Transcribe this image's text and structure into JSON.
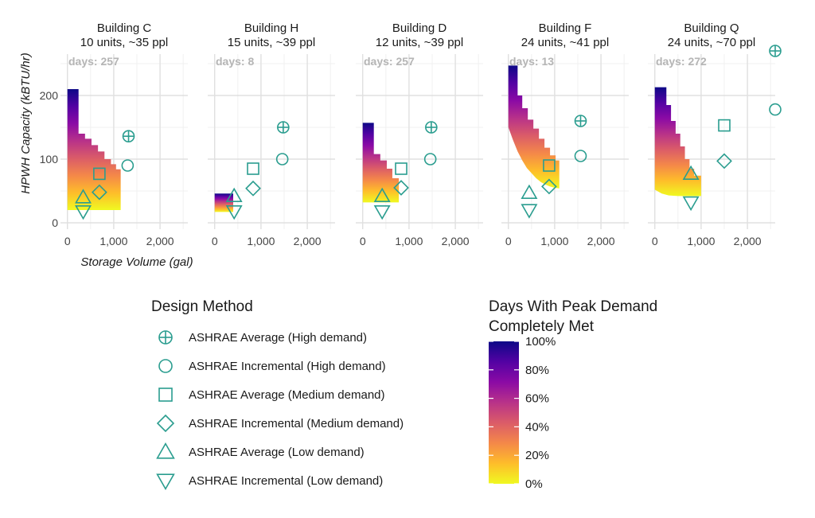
{
  "chart_data": {
    "type": "heatmap",
    "xlabel": "Storage Volume (gal)",
    "ylabel": "HPWH Capacity (kBTU/hr)",
    "xlim": [
      -150,
      2600
    ],
    "ylim": [
      -10,
      265
    ],
    "x_ticks": [
      0,
      1000,
      2000
    ],
    "x_tick_labels": [
      "0",
      "1,000",
      "2,000"
    ],
    "y_ticks": [
      0,
      100,
      200
    ],
    "y_tick_labels": [
      "0",
      "100",
      "200"
    ],
    "grid": true,
    "facets": [
      {
        "title_line1": "Building C",
        "title_line2": "10 units, ~35 ppl",
        "days_label": "days: 257",
        "region": {
          "x_min": 0,
          "x_max": 1150,
          "y_top": [
            [
              0,
              210
            ],
            [
              240,
              210
            ],
            [
              240,
              140
            ],
            [
              380,
              140
            ],
            [
              380,
              132
            ],
            [
              520,
              132
            ],
            [
              520,
              122
            ],
            [
              660,
              122
            ],
            [
              660,
              112
            ],
            [
              800,
              112
            ],
            [
              800,
              100
            ],
            [
              940,
              100
            ],
            [
              940,
              92
            ],
            [
              1050,
              92
            ],
            [
              1050,
              84
            ],
            [
              1150,
              84
            ]
          ],
          "y_bottom": [
            [
              0,
              20
            ],
            [
              1150,
              20
            ]
          ]
        },
        "points": [
          {
            "method": "ASHRAE Average (High demand)",
            "x": 1320,
            "y": 136
          },
          {
            "method": "ASHRAE Incremental (High demand)",
            "x": 1300,
            "y": 90
          },
          {
            "method": "ASHRAE Average (Medium demand)",
            "x": 690,
            "y": 77
          },
          {
            "method": "ASHRAE Incremental (Medium demand)",
            "x": 690,
            "y": 48
          },
          {
            "method": "ASHRAE Average (Low demand)",
            "x": 340,
            "y": 40
          },
          {
            "method": "ASHRAE Incremental (Low demand)",
            "x": 340,
            "y": 18
          }
        ]
      },
      {
        "title_line1": "Building H",
        "title_line2": "15 units, ~39 ppl",
        "days_label": "days: 8",
        "region": {
          "x_min": 0,
          "x_max": 400,
          "y_top": [
            [
              0,
              46
            ],
            [
              400,
              46
            ]
          ],
          "y_bottom": [
            [
              0,
              17
            ],
            [
              400,
              17
            ]
          ]
        },
        "points": [
          {
            "method": "ASHRAE Average (High demand)",
            "x": 1480,
            "y": 150
          },
          {
            "method": "ASHRAE Incremental (High demand)",
            "x": 1460,
            "y": 100
          },
          {
            "method": "ASHRAE Average (Medium demand)",
            "x": 830,
            "y": 85
          },
          {
            "method": "ASHRAE Incremental (Medium demand)",
            "x": 830,
            "y": 54
          },
          {
            "method": "ASHRAE Average (Low demand)",
            "x": 420,
            "y": 42
          },
          {
            "method": "ASHRAE Incremental (Low demand)",
            "x": 420,
            "y": 18
          }
        ]
      },
      {
        "title_line1": "Building D",
        "title_line2": "12 units, ~39 ppl",
        "days_label": "days: 257",
        "region": {
          "x_min": 0,
          "x_max": 780,
          "y_top": [
            [
              0,
              157
            ],
            [
              240,
              157
            ],
            [
              240,
              108
            ],
            [
              380,
              108
            ],
            [
              380,
              98
            ],
            [
              520,
              98
            ],
            [
              520,
              85
            ],
            [
              640,
              85
            ],
            [
              640,
              70
            ],
            [
              780,
              70
            ]
          ],
          "y_bottom": [
            [
              0,
              32
            ],
            [
              780,
              32
            ]
          ]
        },
        "points": [
          {
            "method": "ASHRAE Average (High demand)",
            "x": 1480,
            "y": 150
          },
          {
            "method": "ASHRAE Incremental (High demand)",
            "x": 1460,
            "y": 100
          },
          {
            "method": "ASHRAE Average (Medium demand)",
            "x": 830,
            "y": 85
          },
          {
            "method": "ASHRAE Incremental (Medium demand)",
            "x": 830,
            "y": 55
          },
          {
            "method": "ASHRAE Average (Low demand)",
            "x": 420,
            "y": 42
          },
          {
            "method": "ASHRAE Incremental (Low demand)",
            "x": 420,
            "y": 18
          }
        ]
      },
      {
        "title_line1": "Building F",
        "title_line2": "24 units, ~41 ppl",
        "days_label": "days: 13",
        "region": {
          "x_min": 0,
          "x_max": 1100,
          "y_top": [
            [
              0,
              247
            ],
            [
              200,
              247
            ],
            [
              200,
              200
            ],
            [
              300,
              200
            ],
            [
              300,
              180
            ],
            [
              420,
              180
            ],
            [
              420,
              162
            ],
            [
              540,
              162
            ],
            [
              540,
              148
            ],
            [
              660,
              148
            ],
            [
              660,
              132
            ],
            [
              780,
              132
            ],
            [
              780,
              118
            ],
            [
              900,
              118
            ],
            [
              900,
              106
            ],
            [
              1020,
              106
            ],
            [
              1020,
              98
            ],
            [
              1100,
              98
            ]
          ],
          "y_bottom": [
            [
              0,
              150
            ],
            [
              100,
              130
            ],
            [
              200,
              112
            ],
            [
              300,
              98
            ],
            [
              400,
              86
            ],
            [
              500,
              78
            ],
            [
              600,
              70
            ],
            [
              700,
              64
            ],
            [
              800,
              60
            ],
            [
              900,
              57
            ],
            [
              1000,
              55
            ],
            [
              1100,
              54
            ]
          ]
        },
        "points": [
          {
            "method": "ASHRAE Average (High demand)",
            "x": 1560,
            "y": 160
          },
          {
            "method": "ASHRAE Incremental (High demand)",
            "x": 1560,
            "y": 105
          },
          {
            "method": "ASHRAE Average (Medium demand)",
            "x": 880,
            "y": 90
          },
          {
            "method": "ASHRAE Incremental (Medium demand)",
            "x": 880,
            "y": 57
          },
          {
            "method": "ASHRAE Average (Low demand)",
            "x": 450,
            "y": 47
          },
          {
            "method": "ASHRAE Incremental (Low demand)",
            "x": 450,
            "y": 20
          }
        ]
      },
      {
        "title_line1": "Building Q",
        "title_line2": "24 units, ~70 ppl",
        "days_label": "days: 272",
        "region": {
          "x_min": 0,
          "x_max": 1000,
          "y_top": [
            [
              0,
              213
            ],
            [
              250,
              213
            ],
            [
              250,
              185
            ],
            [
              350,
              185
            ],
            [
              350,
              160
            ],
            [
              450,
              160
            ],
            [
              450,
              140
            ],
            [
              550,
              140
            ],
            [
              550,
              120
            ],
            [
              650,
              120
            ],
            [
              650,
              100
            ],
            [
              750,
              100
            ],
            [
              750,
              85
            ],
            [
              850,
              85
            ],
            [
              850,
              74
            ],
            [
              1000,
              74
            ]
          ],
          "y_bottom": [
            [
              0,
              52
            ],
            [
              150,
              46
            ],
            [
              300,
              43
            ],
            [
              500,
              42
            ],
            [
              1000,
              42
            ]
          ]
        },
        "points": [
          {
            "method": "ASHRAE Average (High demand)",
            "x": 2600,
            "y": 270
          },
          {
            "method": "ASHRAE Incremental (High demand)",
            "x": 2600,
            "y": 178
          },
          {
            "method": "ASHRAE Average (Medium demand)",
            "x": 1500,
            "y": 153
          },
          {
            "method": "ASHRAE Incremental (Medium demand)",
            "x": 1500,
            "y": 97
          },
          {
            "method": "ASHRAE Average (Low demand)",
            "x": 780,
            "y": 77
          },
          {
            "method": "ASHRAE Incremental (Low demand)",
            "x": 780,
            "y": 32
          }
        ]
      }
    ],
    "legend_methods": {
      "title": "Design Method",
      "placement": "bottom-center",
      "marker_color": "#2a9d8f",
      "items": [
        {
          "label": "ASHRAE Average (High demand)",
          "shape": "circle-plus"
        },
        {
          "label": "ASHRAE Incremental (High demand)",
          "shape": "circle"
        },
        {
          "label": "ASHRAE Average (Medium demand)",
          "shape": "square"
        },
        {
          "label": "ASHRAE Incremental (Medium demand)",
          "shape": "diamond"
        },
        {
          "label": "ASHRAE Average (Low demand)",
          "shape": "triangle-up"
        },
        {
          "label": "ASHRAE Incremental (Low demand)",
          "shape": "triangle-down"
        }
      ]
    },
    "legend_colorbar": {
      "title_line1": "Days With Peak Demand",
      "title_line2": "Completely Met",
      "placement": "bottom-right",
      "range": [
        0,
        100
      ],
      "ticks": [
        "100%",
        "80%",
        "60%",
        "40%",
        "20%",
        "0%"
      ],
      "tick_values": [
        100,
        80,
        60,
        40,
        20,
        0
      ],
      "colormap": "plasma",
      "color_stops": [
        "#0d0887",
        "#5302a3",
        "#8b0aa5",
        "#b83289",
        "#db5c68",
        "#f48849",
        "#febd2a",
        "#f0f921"
      ]
    }
  }
}
